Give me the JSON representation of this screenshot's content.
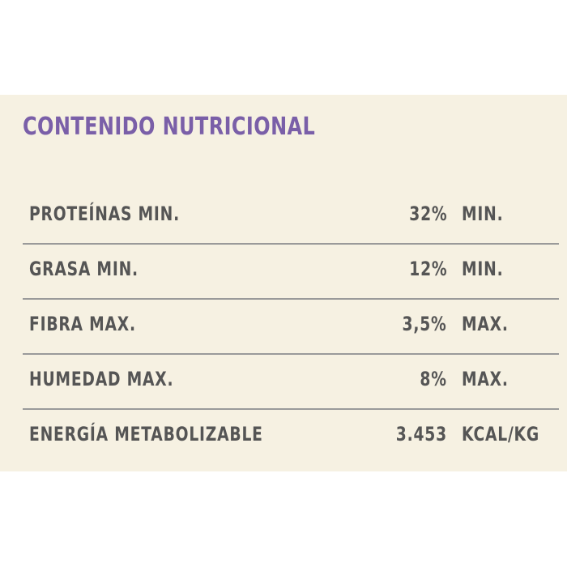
{
  "header": {
    "title": "CONTENIDO NUTRICIONAL"
  },
  "table": {
    "rows": [
      [
        "PROTEÍNAS MIN.",
        "32%",
        "MIN."
      ],
      [
        "GRASA MIN.",
        "12%",
        "MIN."
      ],
      [
        "FIBRA MAX.",
        "3,5%",
        "MAX."
      ],
      [
        "HUMEDAD MAX.",
        "8%",
        "MAX."
      ],
      [
        "ENERGÍA METABOLIZABLE",
        "3.453",
        "KCAL/KG"
      ]
    ]
  }
}
